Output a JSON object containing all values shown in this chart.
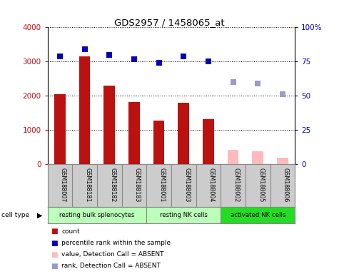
{
  "title": "GDS2957 / 1458065_at",
  "samples": [
    "GSM188007",
    "GSM188181",
    "GSM188182",
    "GSM188183",
    "GSM188001",
    "GSM188003",
    "GSM188004",
    "GSM188002",
    "GSM188005",
    "GSM188006"
  ],
  "count_values": [
    2050,
    3150,
    2300,
    1820,
    1280,
    1800,
    1330,
    null,
    null,
    null
  ],
  "count_absent_values": [
    null,
    null,
    null,
    null,
    null,
    null,
    null,
    430,
    380,
    190
  ],
  "percentile_values": [
    79,
    84,
    80,
    77,
    74,
    79,
    75,
    null,
    null,
    null
  ],
  "percentile_absent_values": [
    null,
    null,
    null,
    null,
    null,
    null,
    null,
    60,
    59,
    51
  ],
  "cell_groups": [
    {
      "label": "resting bulk splenocytes",
      "start": 0,
      "end": 3,
      "color": "#bbffbb"
    },
    {
      "label": "resting NK cells",
      "start": 4,
      "end": 6,
      "color": "#bbffbb"
    },
    {
      "label": "activated NK cells",
      "start": 7,
      "end": 9,
      "color": "#22dd22"
    }
  ],
  "ylim_left": [
    0,
    4000
  ],
  "ylim_right": [
    0,
    100
  ],
  "yticks_left": [
    0,
    1000,
    2000,
    3000,
    4000
  ],
  "yticks_right": [
    0,
    25,
    50,
    75,
    100
  ],
  "yticklabels_right": [
    "0",
    "25",
    "50",
    "75",
    "100%"
  ],
  "bar_color_present": "#bb1111",
  "bar_color_absent": "#ffbbbb",
  "dot_color_present": "#0000bb",
  "dot_color_absent": "#9999cc",
  "bar_width": 0.45,
  "dot_size": 40,
  "legend_items": [
    {
      "color": "#bb1111",
      "label": "count"
    },
    {
      "color": "#0000bb",
      "label": "percentile rank within the sample"
    },
    {
      "color": "#ffbbbb",
      "label": "value, Detection Call = ABSENT"
    },
    {
      "color": "#9999cc",
      "label": "rank, Detection Call = ABSENT"
    }
  ]
}
